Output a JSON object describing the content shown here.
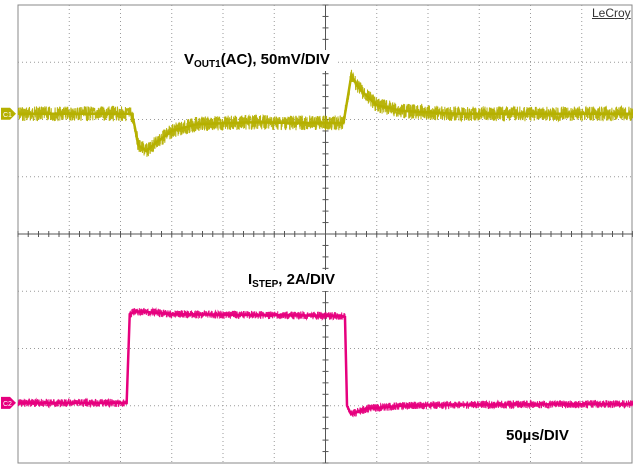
{
  "brand": "LeCroy",
  "chart_data": {
    "type": "line",
    "title": "",
    "grid": true,
    "divisions": {
      "x": 12,
      "y": 8
    },
    "time_per_div": "50µs/DIV",
    "channels": [
      {
        "name": "C1",
        "label_main": "V",
        "label_sub": "OUT1",
        "label_rest": "(AC), 50mV/DIV",
        "color": "#b5b000",
        "marker_div": 1.9,
        "points_div": [
          [
            0,
            1.9
          ],
          [
            2.2,
            1.9
          ],
          [
            2.25,
            2.0
          ],
          [
            2.35,
            2.45
          ],
          [
            2.5,
            2.55
          ],
          [
            2.7,
            2.4
          ],
          [
            3.0,
            2.2
          ],
          [
            3.5,
            2.08
          ],
          [
            4.5,
            2.05
          ],
          [
            5.5,
            2.06
          ],
          [
            6.35,
            2.06
          ],
          [
            6.4,
            1.8
          ],
          [
            6.5,
            1.25
          ],
          [
            6.7,
            1.5
          ],
          [
            7.0,
            1.75
          ],
          [
            7.5,
            1.85
          ],
          [
            8.5,
            1.9
          ],
          [
            10.5,
            1.9
          ],
          [
            12,
            1.9
          ]
        ],
        "noise_div": 0.13
      },
      {
        "name": "C2",
        "label_main": "I",
        "label_sub": "STEP",
        "label_rest": ", 2A/DIV",
        "color": "#e6007e",
        "marker_div": 6.95,
        "points_div": [
          [
            0,
            6.95
          ],
          [
            2.12,
            6.95
          ],
          [
            2.18,
            5.4
          ],
          [
            2.3,
            5.35
          ],
          [
            3.0,
            5.4
          ],
          [
            6.3,
            5.43
          ],
          [
            6.38,
            5.45
          ],
          [
            6.42,
            7.0
          ],
          [
            6.5,
            7.15
          ],
          [
            6.8,
            7.05
          ],
          [
            7.5,
            7.0
          ],
          [
            9.0,
            6.98
          ],
          [
            12,
            6.97
          ]
        ],
        "noise_div": 0.07
      }
    ]
  }
}
